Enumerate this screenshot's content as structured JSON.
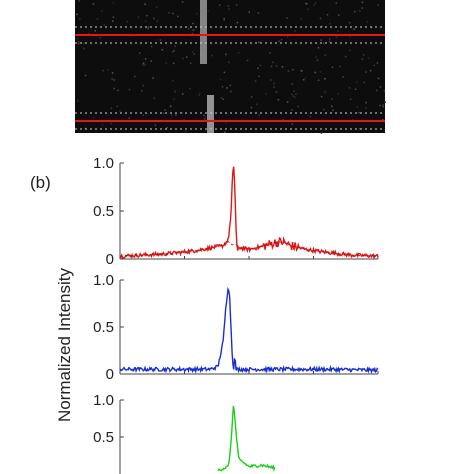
{
  "panel_label": "(b)",
  "ylabel": "Normalized Intensity",
  "image_panel": {
    "background": "#0d0d0d",
    "line_color": "#e01818",
    "dash_color": "#d0d0d0"
  },
  "chart_data": [
    {
      "type": "line",
      "name_in_figure": "",
      "color": "#e01818",
      "ylim": [
        0,
        1.0
      ],
      "yticks": [
        "1.0",
        "0.5",
        "0"
      ],
      "xlim": [
        0,
        1
      ],
      "baseline": 0.03,
      "profile": [
        [
          0.0,
          0.03
        ],
        [
          0.08,
          0.04
        ],
        [
          0.16,
          0.05
        ],
        [
          0.24,
          0.07
        ],
        [
          0.3,
          0.09
        ],
        [
          0.36,
          0.12
        ],
        [
          0.4,
          0.14
        ],
        [
          0.42,
          0.2
        ],
        [
          0.43,
          0.45
        ],
        [
          0.435,
          0.8
        ],
        [
          0.44,
          1.0
        ],
        [
          0.445,
          0.75
        ],
        [
          0.45,
          0.3
        ],
        [
          0.455,
          0.05
        ],
        [
          0.46,
          0.12
        ],
        [
          0.5,
          0.1
        ],
        [
          0.55,
          0.13
        ],
        [
          0.6,
          0.17
        ],
        [
          0.63,
          0.18
        ],
        [
          0.66,
          0.14
        ],
        [
          0.72,
          0.1
        ],
        [
          0.8,
          0.07
        ],
        [
          0.9,
          0.04
        ],
        [
          1.0,
          0.03
        ]
      ]
    },
    {
      "type": "line",
      "name_in_figure": "",
      "color": "#1a2fd0",
      "ylim": [
        0,
        1.0
      ],
      "yticks": [
        "1.0",
        "0.5",
        "0"
      ],
      "xlim": [
        0,
        1
      ],
      "baseline": 0.04,
      "profile": [
        [
          0.0,
          0.05
        ],
        [
          0.2,
          0.05
        ],
        [
          0.35,
          0.05
        ],
        [
          0.38,
          0.08
        ],
        [
          0.4,
          0.35
        ],
        [
          0.41,
          0.7
        ],
        [
          0.42,
          0.95
        ],
        [
          0.425,
          0.82
        ],
        [
          0.43,
          0.5
        ],
        [
          0.435,
          0.2
        ],
        [
          0.44,
          0.05
        ],
        [
          0.445,
          0.18
        ],
        [
          0.45,
          0.05
        ],
        [
          0.6,
          0.05
        ],
        [
          0.8,
          0.05
        ],
        [
          1.0,
          0.04
        ]
      ]
    },
    {
      "type": "line",
      "name_in_figure": "",
      "color": "#18d018",
      "ylim": [
        0,
        1.0
      ],
      "yticks": [
        "1.0",
        "0.5"
      ],
      "xlim": [
        0,
        1
      ],
      "baseline": 0.05,
      "profile": [
        [
          0.38,
          0.05
        ],
        [
          0.42,
          0.1
        ],
        [
          0.43,
          0.4
        ],
        [
          0.44,
          0.95
        ],
        [
          0.45,
          0.55
        ],
        [
          0.46,
          0.2
        ],
        [
          0.5,
          0.1
        ],
        [
          0.55,
          0.12
        ],
        [
          0.6,
          0.08
        ]
      ]
    }
  ]
}
